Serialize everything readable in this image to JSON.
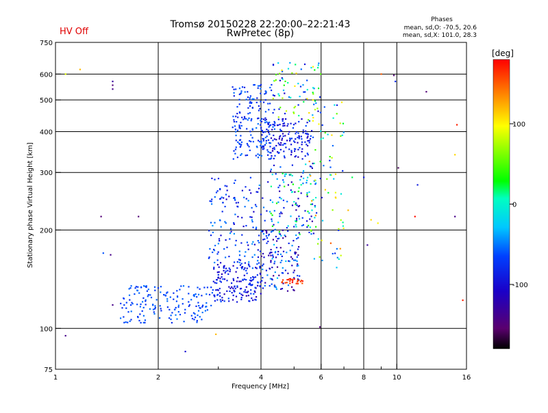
{
  "chart_data": {
    "type": "scatter",
    "title": "Tromsø 20150228 22:20:00–22:21:43",
    "subtitle": "RwPretec (8p)",
    "status_label": "HV Off",
    "status_color": "#e00000",
    "phase_stats": {
      "header": "Phases",
      "line1": "mean, sd,O: -70.5, 20.6",
      "line2": "mean, sd,X: 101.0, 28.3"
    },
    "xlabel": "Frequency [MHz]",
    "ylabel": "Stationary phase Virtual Height [km]",
    "x_scale": "log",
    "y_scale": "log",
    "xlim": [
      1,
      16
    ],
    "ylim": [
      75,
      750
    ],
    "x_ticks": [
      1,
      2,
      4,
      6,
      8,
      10,
      16
    ],
    "x_gridlines": [
      2,
      4,
      6,
      8,
      10
    ],
    "x_minor_ticks": [
      3,
      5,
      7,
      9
    ],
    "y_ticks": [
      75,
      100,
      200,
      300,
      400,
      500,
      600,
      750
    ],
    "y_gridlines": [
      100,
      200,
      300,
      400,
      500,
      600
    ],
    "grid": true,
    "colorbar": {
      "label": "[deg]",
      "range": [
        -180,
        180
      ],
      "ticks": [
        100,
        0,
        -100
      ]
    },
    "seed": 20150228,
    "clusters": [
      {
        "f": [
          1.55,
          2.9
        ],
        "h": [
          104,
          135
        ],
        "n": 170,
        "phase": [
          -80,
          -50
        ]
      },
      {
        "f": [
          2.9,
          4.0
        ],
        "h": [
          120,
          160
        ],
        "n": 160,
        "phase": [
          -120,
          -60
        ]
      },
      {
        "f": [
          2.8,
          4.2
        ],
        "h": [
          150,
          290
        ],
        "n": 150,
        "phase": [
          -110,
          -40
        ]
      },
      {
        "f": [
          4.0,
          5.2
        ],
        "h": [
          130,
          200
        ],
        "n": 130,
        "phase": [
          -140,
          -30
        ]
      },
      {
        "f": [
          3.3,
          4.4
        ],
        "h": [
          330,
          560
        ],
        "n": 180,
        "phase": [
          -90,
          -50
        ]
      },
      {
        "f": [
          4.0,
          5.6
        ],
        "h": [
          330,
          440
        ],
        "n": 150,
        "phase": [
          -120,
          -60
        ]
      },
      {
        "f": [
          4.2,
          5.8
        ],
        "h": [
          190,
          320
        ],
        "n": 130,
        "phase": [
          -130,
          40
        ]
      },
      {
        "f": [
          4.3,
          6.0
        ],
        "h": [
          430,
          650
        ],
        "n": 80,
        "phase": [
          -110,
          110
        ]
      },
      {
        "f": [
          5.5,
          7.0
        ],
        "h": [
          150,
          500
        ],
        "n": 80,
        "phase": [
          -100,
          150
        ]
      },
      {
        "f": [
          4.6,
          5.3
        ],
        "h": [
          137,
          142
        ],
        "n": 25,
        "phase": [
          150,
          180
        ]
      }
    ],
    "outliers": [
      {
        "f": 1.07,
        "h": 600,
        "phase": 90
      },
      {
        "f": 1.18,
        "h": 620,
        "phase": 120
      },
      {
        "f": 1.47,
        "h": 570,
        "phase": -130
      },
      {
        "f": 1.47,
        "h": 555,
        "phase": -150
      },
      {
        "f": 1.47,
        "h": 540,
        "phase": -140
      },
      {
        "f": 1.36,
        "h": 220,
        "phase": -150
      },
      {
        "f": 1.38,
        "h": 170,
        "phase": -60
      },
      {
        "f": 1.45,
        "h": 168,
        "phase": -140
      },
      {
        "f": 1.75,
        "h": 220,
        "phase": -150
      },
      {
        "f": 1.47,
        "h": 118,
        "phase": -140
      },
      {
        "f": 1.07,
        "h": 95,
        "phase": -140
      },
      {
        "f": 2.4,
        "h": 85,
        "phase": -100
      },
      {
        "f": 2.95,
        "h": 96,
        "phase": 120
      },
      {
        "f": 5.95,
        "h": 101,
        "phase": -150
      },
      {
        "f": 9.0,
        "h": 600,
        "phase": 150
      },
      {
        "f": 9.8,
        "h": 595,
        "phase": -150
      },
      {
        "f": 9.9,
        "h": 570,
        "phase": -80
      },
      {
        "f": 12.2,
        "h": 530,
        "phase": -150
      },
      {
        "f": 15.0,
        "h": 420,
        "phase": 170
      },
      {
        "f": 10.1,
        "h": 310,
        "phase": -160
      },
      {
        "f": 11.5,
        "h": 275,
        "phase": -90
      },
      {
        "f": 14.8,
        "h": 340,
        "phase": 110
      },
      {
        "f": 11.3,
        "h": 220,
        "phase": 175
      },
      {
        "f": 14.8,
        "h": 220,
        "phase": -140
      },
      {
        "f": 15.6,
        "h": 122,
        "phase": 170
      },
      {
        "f": 8.0,
        "h": 290,
        "phase": -90
      },
      {
        "f": 8.4,
        "h": 215,
        "phase": 110
      },
      {
        "f": 8.8,
        "h": 210,
        "phase": 100
      },
      {
        "f": 7.4,
        "h": 290,
        "phase": 20
      },
      {
        "f": 7.2,
        "h": 230,
        "phase": 120
      },
      {
        "f": 8.2,
        "h": 180,
        "phase": -130
      }
    ]
  }
}
